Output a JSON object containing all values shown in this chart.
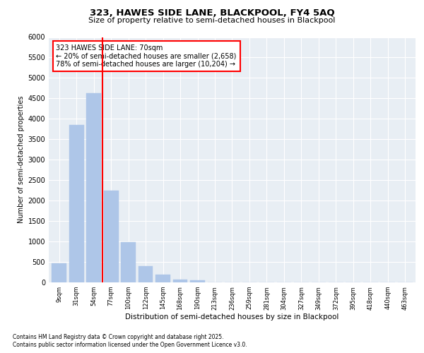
{
  "title1": "323, HAWES SIDE LANE, BLACKPOOL, FY4 5AQ",
  "title2": "Size of property relative to semi-detached houses in Blackpool",
  "xlabel": "Distribution of semi-detached houses by size in Blackpool",
  "ylabel": "Number of semi-detached properties",
  "categories": [
    "9sqm",
    "31sqm",
    "54sqm",
    "77sqm",
    "100sqm",
    "122sqm",
    "145sqm",
    "168sqm",
    "190sqm",
    "213sqm",
    "236sqm",
    "259sqm",
    "281sqm",
    "304sqm",
    "327sqm",
    "349sqm",
    "372sqm",
    "395sqm",
    "418sqm",
    "440sqm",
    "463sqm"
  ],
  "values": [
    460,
    3850,
    4620,
    2250,
    980,
    390,
    185,
    65,
    55,
    0,
    0,
    0,
    0,
    0,
    0,
    0,
    0,
    0,
    0,
    0,
    0
  ],
  "bar_color": "#aec6e8",
  "bar_edge_color": "#aec6e8",
  "vline_color": "red",
  "vline_x": 2.5,
  "annotation_text": "323 HAWES SIDE LANE: 70sqm\n← 20% of semi-detached houses are smaller (2,658)\n78% of semi-detached houses are larger (10,204) →",
  "annotation_box_color": "white",
  "annotation_box_edge": "red",
  "ylim": [
    0,
    6000
  ],
  "yticks": [
    0,
    500,
    1000,
    1500,
    2000,
    2500,
    3000,
    3500,
    4000,
    4500,
    5000,
    5500,
    6000
  ],
  "bg_color": "#e8eef4",
  "footer1": "Contains HM Land Registry data © Crown copyright and database right 2025.",
  "footer2": "Contains public sector information licensed under the Open Government Licence v3.0."
}
